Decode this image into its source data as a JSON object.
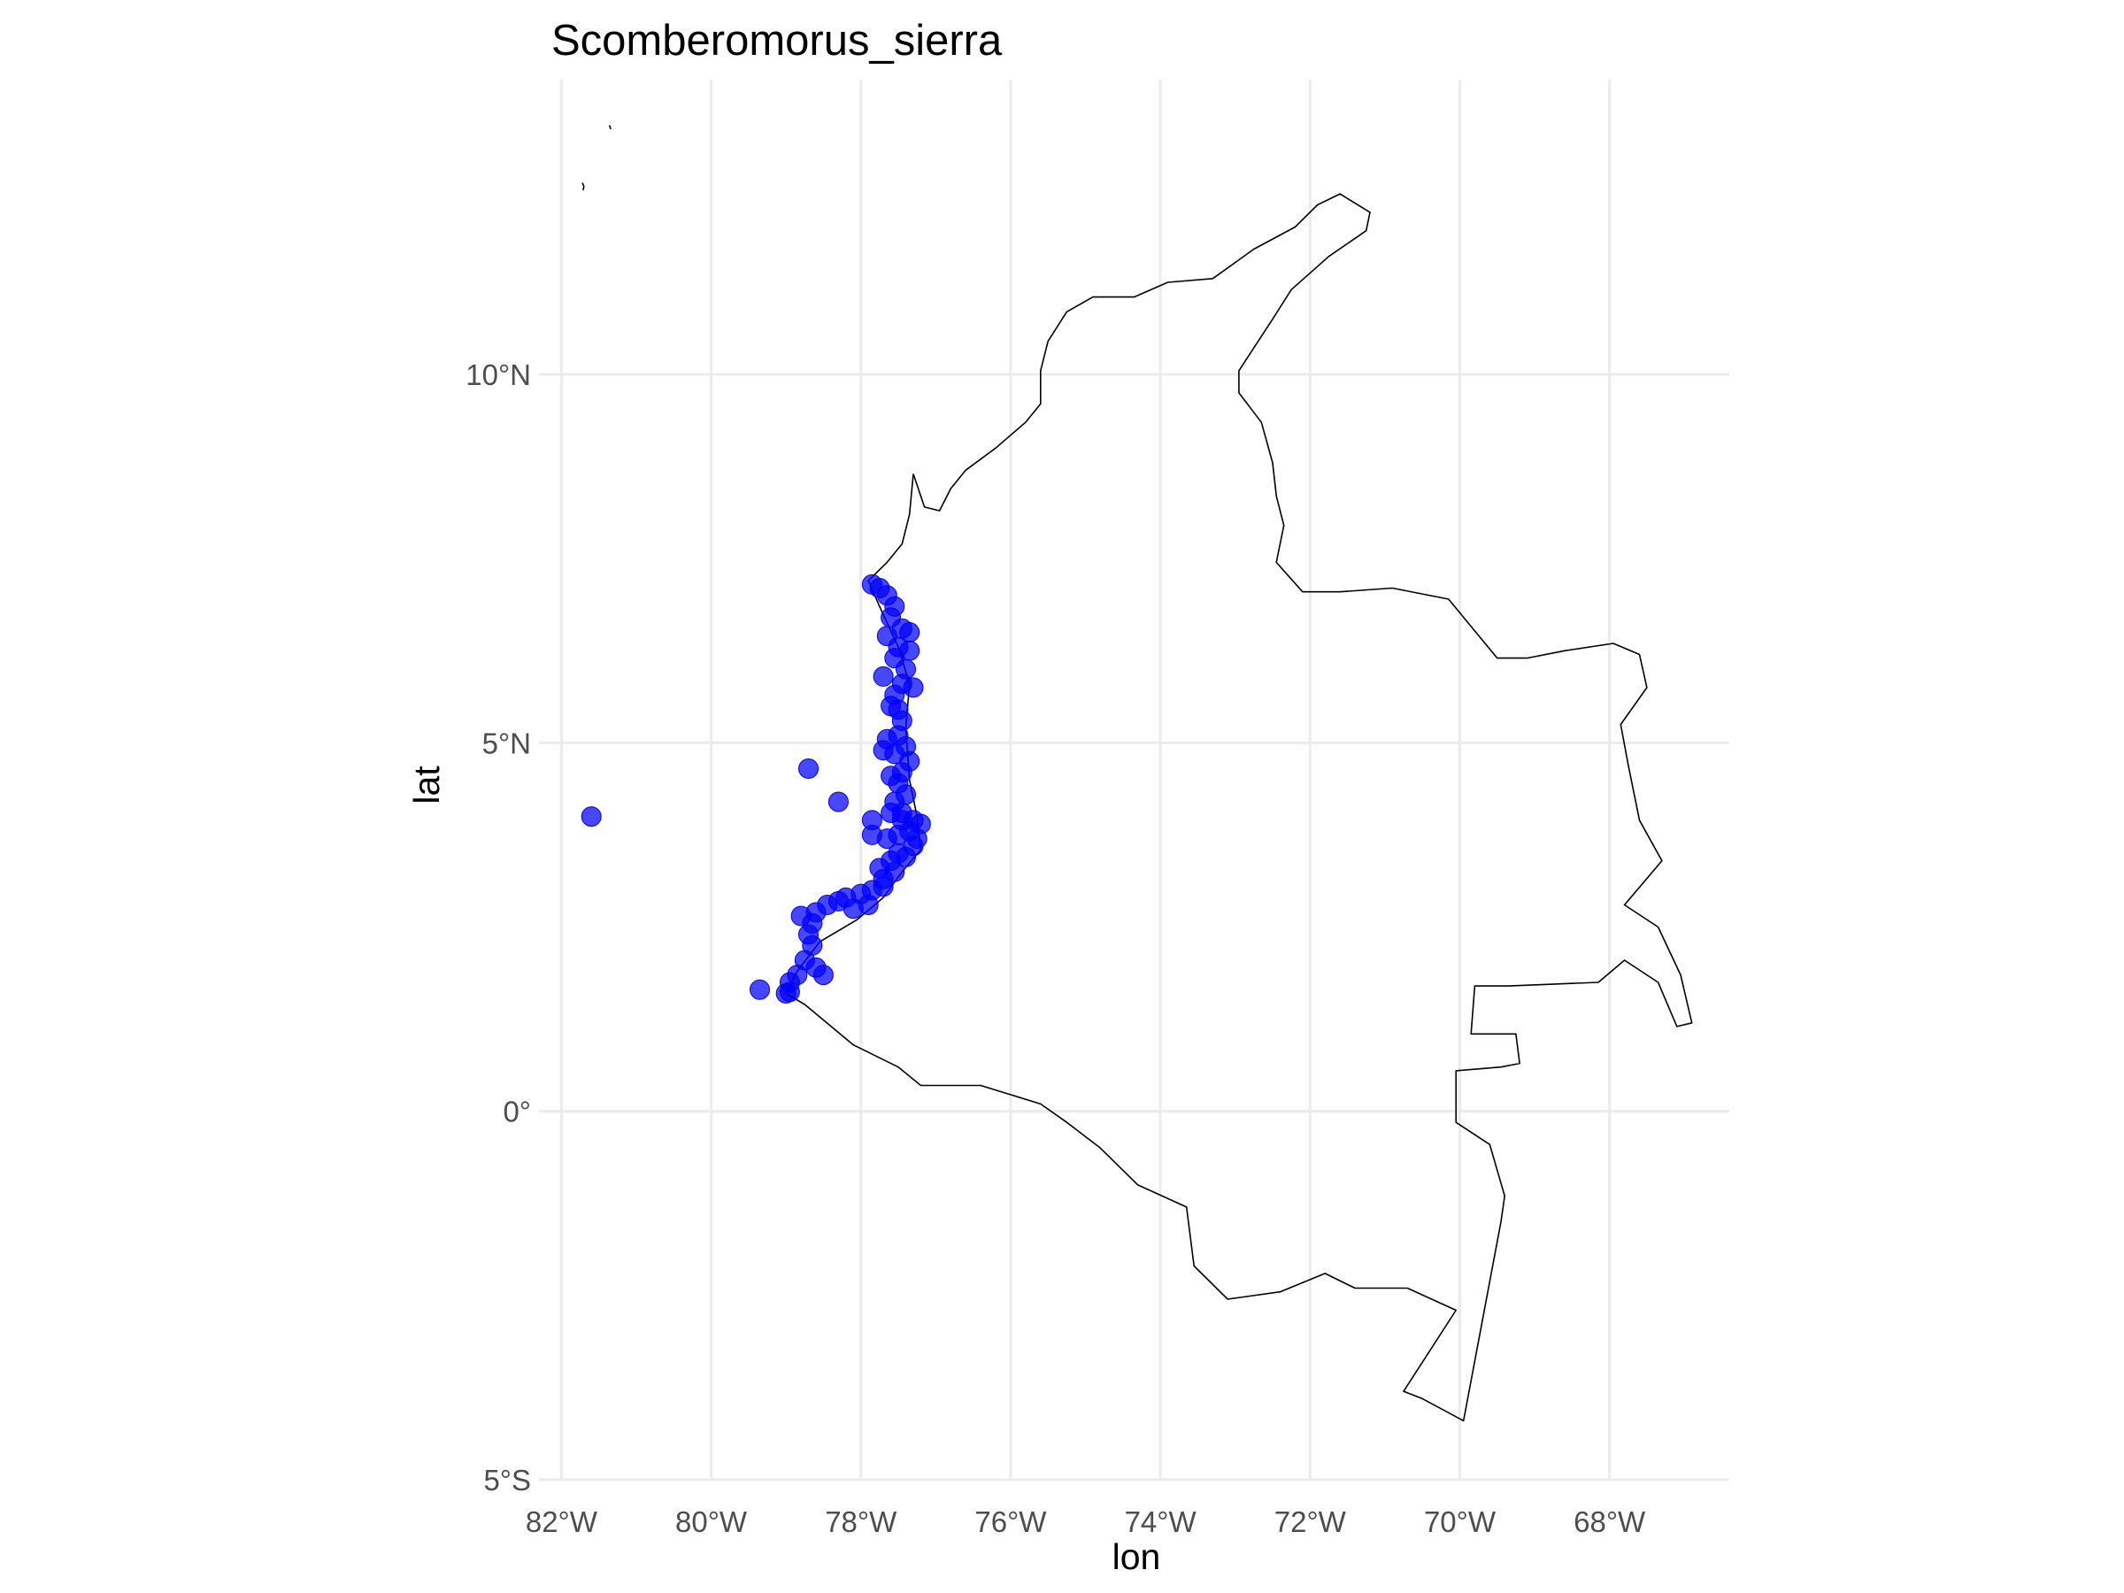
{
  "chart_data": {
    "type": "scatter",
    "title": "Scomberomorus_sierra",
    "xlabel": "lon",
    "ylabel": "lat",
    "xlim": [
      -82.3,
      -66.4
    ],
    "ylim": [
      -5.0,
      14.0
    ],
    "x_ticks": [
      {
        "value": -82,
        "label": "82°W"
      },
      {
        "value": -80,
        "label": "80°W"
      },
      {
        "value": -78,
        "label": "78°W"
      },
      {
        "value": -76,
        "label": "76°W"
      },
      {
        "value": -74,
        "label": "74°W"
      },
      {
        "value": -72,
        "label": "72°W"
      },
      {
        "value": -70,
        "label": "70°W"
      },
      {
        "value": -68,
        "label": "68°W"
      }
    ],
    "y_ticks": [
      {
        "value": 10,
        "label": "10°N"
      },
      {
        "value": 5,
        "label": "5°N"
      },
      {
        "value": 0,
        "label": "0°"
      },
      {
        "value": -5,
        "label": "5°S"
      }
    ],
    "grid": true,
    "legend": "none",
    "point_color": "#0000ff",
    "outline_color": "#000000",
    "series": [
      {
        "points": [
          [
            -81.6,
            4.0
          ],
          [
            -78.7,
            4.65
          ],
          [
            -78.3,
            4.2
          ],
          [
            -77.85,
            3.95
          ],
          [
            -79.35,
            1.65
          ],
          [
            -79.0,
            1.6
          ],
          [
            -78.95,
            1.62
          ],
          [
            -77.85,
            7.15
          ],
          [
            -77.75,
            7.1
          ],
          [
            -77.65,
            7.0
          ],
          [
            -77.55,
            6.85
          ],
          [
            -77.6,
            6.7
          ],
          [
            -77.45,
            6.55
          ],
          [
            -77.35,
            6.5
          ],
          [
            -77.5,
            6.3
          ],
          [
            -77.55,
            6.15
          ],
          [
            -77.4,
            6.0
          ],
          [
            -77.45,
            5.8
          ],
          [
            -77.3,
            5.75
          ],
          [
            -77.55,
            5.65
          ],
          [
            -77.6,
            5.5
          ],
          [
            -77.45,
            5.3
          ],
          [
            -77.5,
            5.1
          ],
          [
            -77.4,
            4.95
          ],
          [
            -77.55,
            4.85
          ],
          [
            -77.35,
            4.75
          ],
          [
            -77.45,
            4.6
          ],
          [
            -77.5,
            4.45
          ],
          [
            -77.4,
            4.3
          ],
          [
            -77.55,
            4.2
          ],
          [
            -77.45,
            4.05
          ],
          [
            -77.3,
            3.95
          ],
          [
            -77.2,
            3.9
          ],
          [
            -77.35,
            3.8
          ],
          [
            -77.5,
            3.75
          ],
          [
            -77.65,
            3.7
          ],
          [
            -77.85,
            3.75
          ],
          [
            -77.3,
            3.6
          ],
          [
            -77.5,
            3.5
          ],
          [
            -77.6,
            3.4
          ],
          [
            -77.75,
            3.3
          ],
          [
            -77.7,
            3.15
          ],
          [
            -77.85,
            3.0
          ],
          [
            -78.0,
            2.95
          ],
          [
            -78.2,
            2.9
          ],
          [
            -78.3,
            2.85
          ],
          [
            -78.45,
            2.8
          ],
          [
            -78.6,
            2.7
          ],
          [
            -78.8,
            2.65
          ],
          [
            -78.65,
            2.55
          ],
          [
            -78.7,
            2.4
          ],
          [
            -78.65,
            2.25
          ],
          [
            -78.75,
            2.05
          ],
          [
            -78.6,
            1.95
          ],
          [
            -78.5,
            1.85
          ],
          [
            -78.85,
            1.85
          ],
          [
            -78.95,
            1.75
          ],
          [
            -77.9,
            2.8
          ],
          [
            -78.1,
            2.75
          ],
          [
            -77.7,
            3.05
          ],
          [
            -77.55,
            3.25
          ],
          [
            -77.4,
            3.45
          ],
          [
            -77.25,
            3.7
          ],
          [
            -77.45,
            3.95
          ],
          [
            -77.6,
            4.05
          ],
          [
            -77.6,
            4.55
          ],
          [
            -77.7,
            4.9
          ],
          [
            -77.65,
            5.05
          ],
          [
            -77.5,
            5.45
          ],
          [
            -77.7,
            5.9
          ],
          [
            -77.35,
            6.25
          ],
          [
            -77.65,
            6.45
          ]
        ]
      }
    ],
    "outlines": [
      [
        [
          -77.3,
          8.65
        ],
        [
          -77.15,
          8.2
        ],
        [
          -76.95,
          8.15
        ],
        [
          -76.8,
          8.45
        ],
        [
          -76.6,
          8.7
        ],
        [
          -76.2,
          9.0
        ],
        [
          -75.8,
          9.35
        ],
        [
          -75.6,
          9.6
        ],
        [
          -75.6,
          10.05
        ],
        [
          -75.5,
          10.45
        ],
        [
          -75.25,
          10.85
        ],
        [
          -74.9,
          11.05
        ],
        [
          -74.35,
          11.05
        ],
        [
          -73.9,
          11.25
        ],
        [
          -73.3,
          11.3
        ],
        [
          -72.75,
          11.7
        ],
        [
          -72.2,
          12.0
        ],
        [
          -71.9,
          12.3
        ],
        [
          -71.6,
          12.45
        ],
        [
          -71.2,
          12.2
        ],
        [
          -71.25,
          11.95
        ],
        [
          -71.75,
          11.6
        ],
        [
          -72.25,
          11.15
        ],
        [
          -72.5,
          10.75
        ],
        [
          -72.95,
          10.05
        ],
        [
          -72.95,
          9.75
        ],
        [
          -72.65,
          9.35
        ],
        [
          -72.5,
          8.8
        ],
        [
          -72.45,
          8.35
        ],
        [
          -72.35,
          7.95
        ],
        [
          -72.45,
          7.45
        ],
        [
          -72.1,
          7.05
        ],
        [
          -71.6,
          7.05
        ],
        [
          -70.9,
          7.1
        ],
        [
          -70.15,
          6.95
        ],
        [
          -69.5,
          6.15
        ],
        [
          -69.1,
          6.15
        ],
        [
          -68.6,
          6.25
        ],
        [
          -67.95,
          6.35
        ],
        [
          -67.6,
          6.2
        ],
        [
          -67.5,
          5.75
        ],
        [
          -67.85,
          5.25
        ],
        [
          -67.75,
          4.7
        ],
        [
          -67.6,
          3.95
        ],
        [
          -67.3,
          3.4
        ],
        [
          -67.8,
          2.8
        ],
        [
          -67.35,
          2.5
        ],
        [
          -67.05,
          1.85
        ],
        [
          -66.9,
          1.2
        ],
        [
          -67.1,
          1.15
        ],
        [
          -67.35,
          1.75
        ],
        [
          -67.8,
          2.05
        ],
        [
          -68.15,
          1.75
        ],
        [
          -69.35,
          1.7
        ],
        [
          -69.8,
          1.7
        ],
        [
          -69.85,
          1.05
        ],
        [
          -69.25,
          1.05
        ],
        [
          -69.2,
          0.65
        ],
        [
          -69.45,
          0.6
        ],
        [
          -70.05,
          0.55
        ],
        [
          -70.05,
          -0.15
        ],
        [
          -69.6,
          -0.45
        ],
        [
          -69.4,
          -1.15
        ],
        [
          -69.45,
          -1.5
        ],
        [
          -69.95,
          -4.2
        ],
        [
          -70.5,
          -3.9
        ],
        [
          -70.75,
          -3.8
        ],
        [
          -70.05,
          -2.7
        ],
        [
          -70.7,
          -2.4
        ],
        [
          -71.4,
          -2.4
        ],
        [
          -71.8,
          -2.2
        ],
        [
          -72.4,
          -2.45
        ],
        [
          -73.1,
          -2.55
        ],
        [
          -73.55,
          -2.1
        ],
        [
          -73.65,
          -1.3
        ],
        [
          -74.3,
          -1.0
        ],
        [
          -74.8,
          -0.5
        ],
        [
          -75.25,
          -0.15
        ],
        [
          -75.6,
          0.1
        ],
        [
          -76.4,
          0.35
        ],
        [
          -77.2,
          0.35
        ],
        [
          -77.5,
          0.6
        ],
        [
          -78.1,
          0.9
        ],
        [
          -78.75,
          1.45
        ],
        [
          -79.0,
          1.6
        ],
        [
          -78.85,
          1.9
        ],
        [
          -78.55,
          2.3
        ],
        [
          -78.05,
          2.6
        ],
        [
          -77.7,
          2.9
        ],
        [
          -77.45,
          3.25
        ],
        [
          -77.2,
          3.55
        ],
        [
          -77.25,
          4.0
        ],
        [
          -77.35,
          4.5
        ],
        [
          -77.4,
          5.2
        ],
        [
          -77.35,
          5.8
        ],
        [
          -77.5,
          6.3
        ],
        [
          -77.75,
          6.85
        ],
        [
          -77.9,
          7.2
        ],
        [
          -77.65,
          7.45
        ],
        [
          -77.45,
          7.7
        ],
        [
          -77.35,
          8.1
        ],
        [
          -77.3,
          8.65
        ]
      ],
      [
        [
          -81.72,
          12.6
        ],
        [
          -81.7,
          12.55
        ],
        [
          -81.71,
          12.5
        ]
      ],
      [
        [
          -81.36,
          13.38
        ],
        [
          -81.34,
          13.33
        ]
      ]
    ]
  }
}
